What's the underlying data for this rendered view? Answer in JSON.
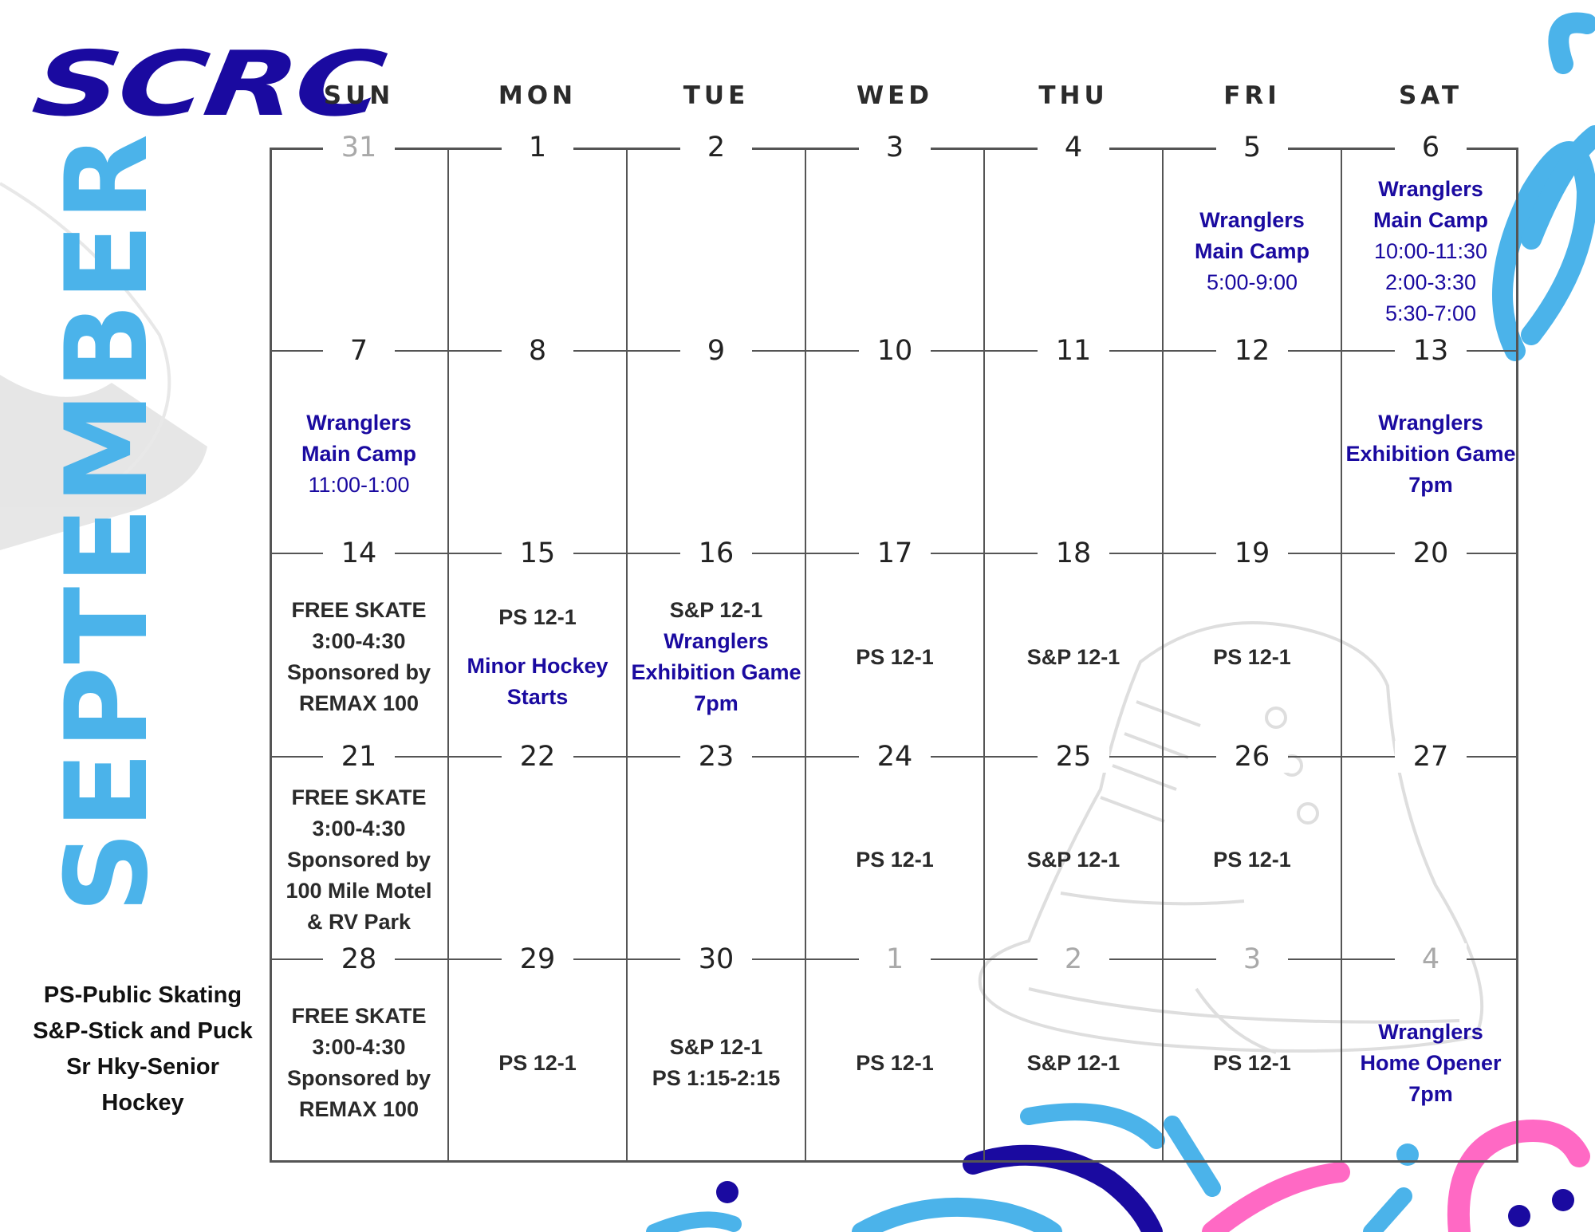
{
  "logo": {
    "text": "SCRC"
  },
  "month": "SEPTEMBER",
  "colors": {
    "blue": "#1a0aa0",
    "light_blue": "#4bb3ea",
    "pink": "#ff69c4",
    "text": "#2a2a2a"
  },
  "day_headers": [
    "SUN",
    "MON",
    "TUE",
    "WED",
    "THU",
    "FRI",
    "SAT"
  ],
  "weeks": [
    [
      {
        "date": "31",
        "muted": true,
        "events": []
      },
      {
        "date": "1",
        "events": []
      },
      {
        "date": "2",
        "events": []
      },
      {
        "date": "3",
        "events": []
      },
      {
        "date": "4",
        "events": []
      },
      {
        "date": "5",
        "events": [
          {
            "text": "Wranglers\nMain Camp",
            "style": "blue-b"
          },
          {
            "text": "5:00-9:00",
            "style": "blue"
          }
        ]
      },
      {
        "date": "6",
        "events": [
          {
            "text": "Wranglers\nMain Camp",
            "style": "blue-b"
          },
          {
            "text": "10:00-11:30\n2:00-3:30\n5:30-7:00",
            "style": "blue"
          }
        ]
      }
    ],
    [
      {
        "date": "7",
        "events": [
          {
            "text": "Wranglers\nMain Camp",
            "style": "blue-b"
          },
          {
            "text": "11:00-1:00",
            "style": "blue"
          }
        ]
      },
      {
        "date": "8",
        "events": []
      },
      {
        "date": "9",
        "events": []
      },
      {
        "date": "10",
        "events": []
      },
      {
        "date": "11",
        "events": []
      },
      {
        "date": "12",
        "events": []
      },
      {
        "date": "13",
        "events": [
          {
            "text": "Wranglers\nExhibition Game\n7pm",
            "style": "blue-b"
          }
        ]
      }
    ],
    [
      {
        "date": "14",
        "events": [
          {
            "text": "FREE SKATE\n3:00-4:30\nSponsored by\nREMAX 100",
            "style": "dark-b"
          }
        ]
      },
      {
        "date": "15",
        "events": [
          {
            "text": "PS 12-1",
            "style": "dark-b"
          },
          {
            "text": "Minor Hockey\nStarts",
            "style": "blue-b",
            "gap": true
          }
        ]
      },
      {
        "date": "16",
        "events": [
          {
            "text": "S&P 12-1",
            "style": "dark-b"
          },
          {
            "text": "Wranglers\nExhibition Game\n7pm",
            "style": "blue-b"
          }
        ]
      },
      {
        "date": "17",
        "events": [
          {
            "text": "PS 12-1",
            "style": "dark-b"
          }
        ]
      },
      {
        "date": "18",
        "events": [
          {
            "text": "S&P 12-1",
            "style": "dark-b"
          }
        ]
      },
      {
        "date": "19",
        "events": [
          {
            "text": "PS 12-1",
            "style": "dark-b"
          }
        ]
      },
      {
        "date": "20",
        "events": []
      }
    ],
    [
      {
        "date": "21",
        "events": [
          {
            "text": "FREE SKATE\n3:00-4:30\nSponsored by\n100 Mile Motel\n& RV Park",
            "style": "dark-b"
          }
        ]
      },
      {
        "date": "22",
        "events": []
      },
      {
        "date": "23",
        "events": []
      },
      {
        "date": "24",
        "events": [
          {
            "text": "PS 12-1",
            "style": "dark-b"
          }
        ]
      },
      {
        "date": "25",
        "events": [
          {
            "text": "S&P 12-1",
            "style": "dark-b"
          }
        ]
      },
      {
        "date": "26",
        "events": [
          {
            "text": "PS 12-1",
            "style": "dark-b"
          }
        ]
      },
      {
        "date": "27",
        "events": []
      }
    ],
    [
      {
        "date": "28",
        "events": [
          {
            "text": "FREE SKATE\n3:00-4:30\nSponsored by\nREMAX 100",
            "style": "dark-b"
          }
        ]
      },
      {
        "date": "29",
        "events": [
          {
            "text": "PS 12-1",
            "style": "dark-b"
          }
        ]
      },
      {
        "date": "30",
        "events": [
          {
            "text": "S&P 12-1\nPS 1:15-2:15",
            "style": "dark-b"
          }
        ]
      },
      {
        "date": "1",
        "muted": true,
        "events": [
          {
            "text": "PS 12-1",
            "style": "dark-b"
          }
        ]
      },
      {
        "date": "2",
        "muted": true,
        "events": [
          {
            "text": "S&P 12-1",
            "style": "dark-b"
          }
        ]
      },
      {
        "date": "3",
        "muted": true,
        "events": [
          {
            "text": "PS 12-1",
            "style": "dark-b"
          }
        ]
      },
      {
        "date": "4",
        "muted": true,
        "events": [
          {
            "text": "Wranglers\nHome Opener\n7pm",
            "style": "blue-b"
          }
        ]
      }
    ]
  ],
  "legend": [
    "PS-Public Skating",
    "S&P-Stick and Puck",
    "Sr Hky-Senior",
    "Hockey"
  ]
}
